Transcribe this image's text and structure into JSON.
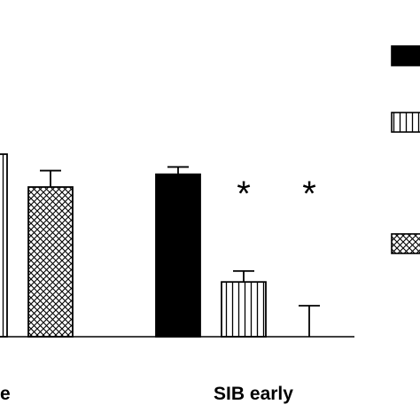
{
  "chart_data": {
    "type": "bar",
    "categories": [
      "e",
      "SIB early"
    ],
    "series": [
      {
        "fill": "solid",
        "values": [
          null,
          0.89
        ],
        "errors": [
          null,
          0.04
        ]
      },
      {
        "fill": "vertical",
        "values": [
          1.0,
          0.3
        ],
        "errors": [
          null,
          0.06
        ]
      },
      {
        "fill": "crosshatch",
        "values": [
          0.82,
          0.0
        ],
        "errors": [
          0.09,
          0.17
        ]
      }
    ],
    "significance": [
      {
        "category": 1,
        "series": 1,
        "label": "*"
      },
      {
        "category": 1,
        "series": 2,
        "label": "*"
      }
    ],
    "ylim": [
      0,
      1.2
    ],
    "grid": false,
    "legend_position": "right",
    "colors": {
      "bar_fill": "#000000",
      "outline": "#000000",
      "background": "#ffffff"
    }
  }
}
